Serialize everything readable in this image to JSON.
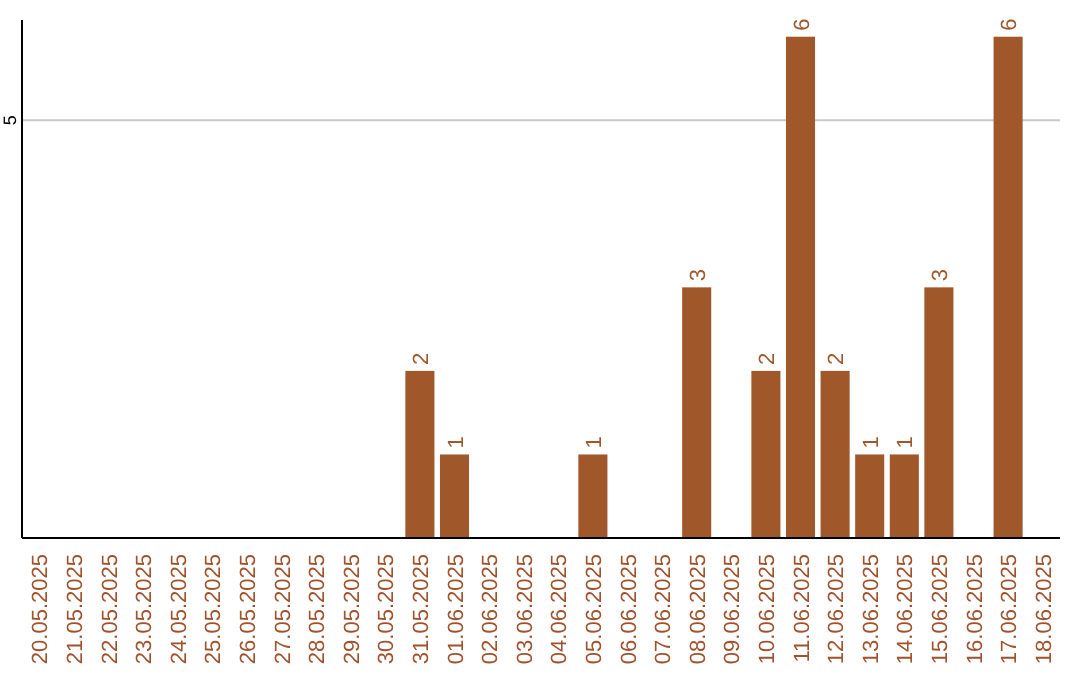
{
  "chart_data": {
    "type": "bar",
    "categories": [
      "20.05.2025",
      "21.05.2025",
      "22.05.2025",
      "23.05.2025",
      "24.05.2025",
      "25.05.2025",
      "26.05.2025",
      "27.05.2025",
      "28.05.2025",
      "29.05.2025",
      "30.05.2025",
      "31.05.2025",
      "01.06.2025",
      "02.06.2025",
      "03.06.2025",
      "04.06.2025",
      "05.06.2025",
      "06.06.2025",
      "07.06.2025",
      "08.06.2025",
      "09.06.2025",
      "10.06.2025",
      "11.06.2025",
      "12.06.2025",
      "13.06.2025",
      "14.06.2025",
      "15.06.2025",
      "16.06.2025",
      "17.06.2025",
      "18.06.2025"
    ],
    "values": [
      0,
      0,
      0,
      0,
      0,
      0,
      0,
      0,
      0,
      0,
      0,
      2,
      1,
      0,
      0,
      0,
      1,
      0,
      0,
      3,
      0,
      2,
      6,
      2,
      1,
      1,
      3,
      0,
      6,
      0
    ],
    "value_labels": [
      null,
      null,
      null,
      null,
      null,
      null,
      null,
      null,
      null,
      null,
      null,
      "2",
      "1",
      null,
      null,
      null,
      "1",
      null,
      null,
      "3",
      null,
      "2",
      "6",
      "2",
      "1",
      "1",
      "3",
      null,
      "6",
      null
    ],
    "color": "#a0572a",
    "ylim": [
      0,
      6.2
    ],
    "yticks": [
      5
    ],
    "grid": "y"
  }
}
